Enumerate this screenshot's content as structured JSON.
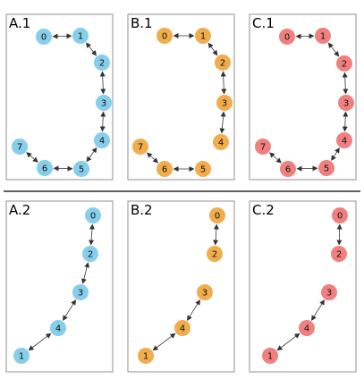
{
  "colors": {
    "A": "#87ceeb",
    "B": "#f0ad4e",
    "C": "#f08080"
  },
  "edge_style": "bidirectional-arrow",
  "panels": [
    {
      "id": "A1",
      "label": "A.1",
      "group": "A",
      "nodes": [
        "0",
        "1",
        "2",
        "3",
        "4",
        "5",
        "6",
        "7"
      ],
      "edges": [
        [
          "0",
          "1"
        ],
        [
          "1",
          "2"
        ],
        [
          "2",
          "3"
        ],
        [
          "3",
          "4"
        ],
        [
          "4",
          "5"
        ],
        [
          "5",
          "6"
        ],
        [
          "6",
          "7"
        ]
      ]
    },
    {
      "id": "B1",
      "label": "B.1",
      "group": "B",
      "nodes": [
        "0",
        "1",
        "2",
        "3",
        "4",
        "5",
        "6",
        "7"
      ],
      "edges": [
        [
          "0",
          "1"
        ],
        [
          "1",
          "2"
        ],
        [
          "2",
          "3"
        ],
        [
          "3",
          "4"
        ],
        [
          "5",
          "6"
        ],
        [
          "6",
          "7"
        ]
      ]
    },
    {
      "id": "C1",
      "label": "C.1",
      "group": "C",
      "nodes": [
        "0",
        "1",
        "2",
        "3",
        "4",
        "5",
        "6",
        "7"
      ],
      "edges": [
        [
          "0",
          "1"
        ],
        [
          "1",
          "2"
        ],
        [
          "2",
          "3"
        ],
        [
          "3",
          "4"
        ],
        [
          "4",
          "5"
        ],
        [
          "5",
          "6"
        ],
        [
          "6",
          "7"
        ]
      ]
    },
    {
      "id": "A2",
      "label": "A.2",
      "group": "A",
      "nodes": [
        "0",
        "2",
        "3",
        "4",
        "1"
      ],
      "edges": [
        [
          "0",
          "2"
        ],
        [
          "2",
          "3"
        ],
        [
          "3",
          "4"
        ],
        [
          "4",
          "1"
        ]
      ]
    },
    {
      "id": "B2",
      "label": "B.2",
      "group": "B",
      "nodes": [
        "0",
        "2",
        "3",
        "4",
        "1"
      ],
      "edges": [
        [
          "0",
          "2"
        ],
        [
          "3",
          "4"
        ],
        [
          "4",
          "1"
        ]
      ]
    },
    {
      "id": "C2",
      "label": "C.2",
      "group": "C",
      "nodes": [
        "0",
        "2",
        "3",
        "4",
        "1"
      ],
      "edges": [
        [
          "0",
          "2"
        ],
        [
          "3",
          "4"
        ],
        [
          "4",
          "1"
        ]
      ]
    }
  ]
}
